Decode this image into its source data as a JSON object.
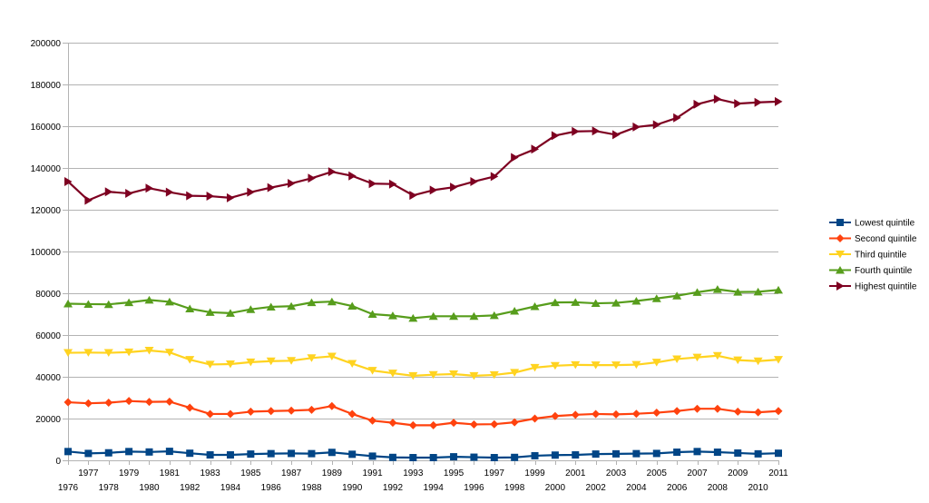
{
  "chart_data": {
    "type": "line",
    "title": "",
    "xlabel": "",
    "ylabel": "",
    "ylim": [
      0,
      200000
    ],
    "yticks": [
      0,
      20000,
      40000,
      60000,
      80000,
      100000,
      120000,
      140000,
      160000,
      180000,
      200000
    ],
    "grid": true,
    "legend_position": "right",
    "x": [
      1976,
      1977,
      1978,
      1979,
      1980,
      1981,
      1982,
      1983,
      1984,
      1985,
      1986,
      1987,
      1988,
      1989,
      1990,
      1991,
      1992,
      1993,
      1994,
      1995,
      1996,
      1997,
      1998,
      1999,
      2000,
      2001,
      2002,
      2003,
      2004,
      2005,
      2006,
      2007,
      2008,
      2009,
      2010,
      2011
    ],
    "series": [
      {
        "name": "Lowest quintile",
        "color": "#004586",
        "marker": "square",
        "values": [
          4200,
          3300,
          3600,
          4200,
          4000,
          4300,
          3400,
          2600,
          2600,
          3000,
          3200,
          3300,
          3200,
          3800,
          2900,
          2000,
          1400,
          1300,
          1300,
          1700,
          1500,
          1300,
          1400,
          2200,
          2500,
          2600,
          3000,
          3100,
          3200,
          3300,
          3900,
          4200,
          3900,
          3500,
          3100,
          3400
        ]
      },
      {
        "name": "Second quintile",
        "color": "#ff420e",
        "marker": "diamond",
        "values": [
          27800,
          27300,
          27600,
          28400,
          28000,
          28100,
          25200,
          22200,
          22200,
          23300,
          23600,
          23800,
          24200,
          26000,
          22200,
          19000,
          18000,
          16800,
          16800,
          18000,
          17200,
          17300,
          18200,
          20000,
          21200,
          21800,
          22200,
          22000,
          22300,
          22800,
          23600,
          24700,
          24700,
          23300,
          23000,
          23600
        ]
      },
      {
        "name": "Third quintile",
        "color": "#ffd320",
        "marker": "triangle-down",
        "values": [
          51500,
          51600,
          51500,
          51800,
          52600,
          51700,
          48200,
          45900,
          46100,
          47000,
          47500,
          47700,
          49000,
          49800,
          46300,
          43000,
          41700,
          40500,
          41000,
          41300,
          40500,
          40900,
          42000,
          44400,
          45300,
          45700,
          45600,
          45600,
          45800,
          46900,
          48500,
          49300,
          50100,
          48000,
          47500,
          48200
        ]
      },
      {
        "name": "Fourth quintile",
        "color": "#579d1c",
        "marker": "triangle-up",
        "values": [
          75000,
          74800,
          74700,
          75600,
          76800,
          75900,
          72600,
          70900,
          70500,
          72300,
          73500,
          73800,
          75600,
          76000,
          73900,
          70000,
          69300,
          68100,
          69000,
          69000,
          69000,
          69400,
          71500,
          73700,
          75600,
          75700,
          75200,
          75400,
          76300,
          77500,
          78800,
          80500,
          81900,
          80600,
          80700,
          81600
        ]
      },
      {
        "name": "Highest quintile",
        "color": "#7e0021",
        "marker": "triangle-right",
        "values": [
          133500,
          124500,
          128600,
          127800,
          130300,
          128400,
          126700,
          126500,
          125700,
          128400,
          130600,
          132600,
          135100,
          138200,
          136200,
          132500,
          132300,
          126900,
          129400,
          130800,
          133500,
          135900,
          145000,
          149000,
          155500,
          157500,
          157700,
          155900,
          159600,
          160700,
          164000,
          170500,
          173000,
          170800,
          171400,
          171800
        ]
      }
    ]
  }
}
